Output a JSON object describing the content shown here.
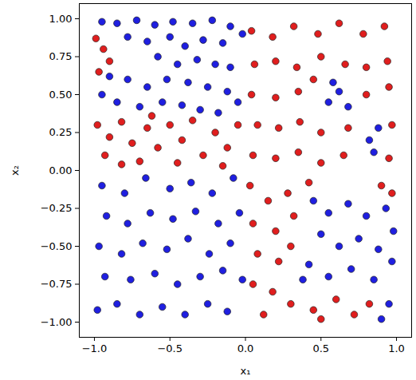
{
  "chart_data": {
    "type": "scatter",
    "xlabel": "x₁",
    "ylabel": "x₂",
    "xlim": [
      -1.1,
      1.1
    ],
    "ylim": [
      -1.1,
      1.1
    ],
    "xticks": [
      {
        "value": -1,
        "label": "−1.0"
      },
      {
        "value": -0.5,
        "label": "−0.5"
      },
      {
        "value": 0,
        "label": "0.0"
      },
      {
        "value": 0.5,
        "label": "0.5"
      },
      {
        "value": 1,
        "label": "1.0"
      }
    ],
    "yticks": [
      {
        "value": -1,
        "label": "−1.00"
      },
      {
        "value": -0.75,
        "label": "−0.75"
      },
      {
        "value": -0.5,
        "label": "−0.50"
      },
      {
        "value": -0.25,
        "label": "−0.25"
      },
      {
        "value": 0,
        "label": "0.00"
      },
      {
        "value": 0.25,
        "label": "0.25"
      },
      {
        "value": 0.5,
        "label": "0.50"
      },
      {
        "value": 0.75,
        "label": "0.75"
      },
      {
        "value": 1,
        "label": "1.00"
      }
    ],
    "grid": false,
    "series": [
      {
        "color": "#1f1fe0",
        "marker": "circle",
        "values": [
          [
            -0.95,
            0.98
          ],
          [
            -0.85,
            0.97
          ],
          [
            -0.72,
            0.99
          ],
          [
            -0.6,
            0.96
          ],
          [
            -0.48,
            0.98
          ],
          [
            -0.35,
            0.97
          ],
          [
            -0.22,
            0.99
          ],
          [
            -0.1,
            0.95
          ],
          [
            -0.02,
            0.9
          ],
          [
            -0.78,
            0.88
          ],
          [
            -0.65,
            0.85
          ],
          [
            -0.5,
            0.88
          ],
          [
            -0.4,
            0.82
          ],
          [
            -0.28,
            0.86
          ],
          [
            -0.15,
            0.84
          ],
          [
            -0.58,
            0.75
          ],
          [
            -0.45,
            0.7
          ],
          [
            -0.32,
            0.73
          ],
          [
            -0.2,
            0.7
          ],
          [
            -0.1,
            0.68
          ],
          [
            -0.9,
            0.62
          ],
          [
            -0.78,
            0.6
          ],
          [
            -0.65,
            0.55
          ],
          [
            -0.52,
            0.6
          ],
          [
            -0.38,
            0.58
          ],
          [
            -0.25,
            0.55
          ],
          [
            -0.12,
            0.52
          ],
          [
            -0.95,
            0.5
          ],
          [
            -0.85,
            0.45
          ],
          [
            -0.7,
            0.42
          ],
          [
            -0.55,
            0.45
          ],
          [
            -0.42,
            0.43
          ],
          [
            -0.3,
            0.4
          ],
          [
            -0.18,
            0.38
          ],
          [
            -0.05,
            0.45
          ],
          [
            -0.95,
            -0.1
          ],
          [
            -0.8,
            -0.15
          ],
          [
            -0.66,
            -0.05
          ],
          [
            -0.5,
            -0.12
          ],
          [
            -0.36,
            -0.08
          ],
          [
            -0.22,
            -0.15
          ],
          [
            -0.08,
            -0.05
          ],
          [
            -0.92,
            -0.3
          ],
          [
            -0.78,
            -0.35
          ],
          [
            -0.63,
            -0.28
          ],
          [
            -0.48,
            -0.32
          ],
          [
            -0.33,
            -0.27
          ],
          [
            -0.18,
            -0.35
          ],
          [
            -0.04,
            -0.28
          ],
          [
            -0.97,
            -0.5
          ],
          [
            -0.82,
            -0.55
          ],
          [
            -0.68,
            -0.48
          ],
          [
            -0.52,
            -0.52
          ],
          [
            -0.38,
            -0.45
          ],
          [
            -0.24,
            -0.55
          ],
          [
            -0.1,
            -0.48
          ],
          [
            -0.93,
            -0.7
          ],
          [
            -0.76,
            -0.72
          ],
          [
            -0.6,
            -0.68
          ],
          [
            -0.45,
            -0.75
          ],
          [
            -0.3,
            -0.7
          ],
          [
            -0.15,
            -0.66
          ],
          [
            -0.02,
            -0.72
          ],
          [
            -0.98,
            -0.92
          ],
          [
            -0.85,
            -0.88
          ],
          [
            -0.7,
            -0.95
          ],
          [
            -0.55,
            -0.9
          ],
          [
            -0.4,
            -0.95
          ],
          [
            -0.25,
            -0.88
          ],
          [
            -0.12,
            -0.93
          ],
          [
            0.55,
            0.45
          ],
          [
            0.62,
            0.52
          ],
          [
            0.68,
            0.42
          ],
          [
            0.58,
            0.58
          ],
          [
            0.82,
            0.2
          ],
          [
            0.88,
            0.28
          ],
          [
            0.85,
            0.12
          ],
          [
            0.45,
            -0.2
          ],
          [
            0.55,
            -0.28
          ],
          [
            0.68,
            -0.22
          ],
          [
            0.8,
            -0.3
          ],
          [
            0.93,
            -0.25
          ],
          [
            0.5,
            -0.42
          ],
          [
            0.62,
            -0.5
          ],
          [
            0.75,
            -0.45
          ],
          [
            0.88,
            -0.52
          ],
          [
            0.98,
            -0.4
          ],
          [
            0.42,
            -0.62
          ],
          [
            0.55,
            -0.7
          ],
          [
            0.7,
            -0.65
          ],
          [
            0.85,
            -0.72
          ],
          [
            0.97,
            -0.6
          ],
          [
            0.95,
            -0.88
          ],
          [
            0.9,
            -0.98
          ],
          [
            0.38,
            -0.72
          ]
        ]
      },
      {
        "color": "#e01e1e",
        "marker": "circle",
        "values": [
          [
            -0.99,
            0.87
          ],
          [
            -0.94,
            0.8
          ],
          [
            -0.9,
            0.72
          ],
          [
            -0.97,
            0.65
          ],
          [
            -0.98,
            0.3
          ],
          [
            -0.9,
            0.22
          ],
          [
            -0.82,
            0.32
          ],
          [
            -0.75,
            0.18
          ],
          [
            -0.65,
            0.28
          ],
          [
            -0.58,
            0.15
          ],
          [
            -0.5,
            0.3
          ],
          [
            -0.42,
            0.2
          ],
          [
            -0.35,
            0.33
          ],
          [
            -0.28,
            0.1
          ],
          [
            -0.2,
            0.25
          ],
          [
            -0.12,
            0.15
          ],
          [
            -0.05,
            0.3
          ],
          [
            -0.93,
            0.1
          ],
          [
            -0.7,
            0.06
          ],
          [
            -0.45,
            0.05
          ],
          [
            -0.15,
            0.03
          ],
          [
            -0.62,
            0.36
          ],
          [
            -0.82,
            0.04
          ],
          [
            0.05,
            0.1
          ],
          [
            0.2,
            0.08
          ],
          [
            0.35,
            0.12
          ],
          [
            0.5,
            0.05
          ],
          [
            0.65,
            0.1
          ],
          [
            0.95,
            0.08
          ],
          [
            0.08,
            0.3
          ],
          [
            0.22,
            0.28
          ],
          [
            0.36,
            0.32
          ],
          [
            0.5,
            0.25
          ],
          [
            0.68,
            0.28
          ],
          [
            0.97,
            0.3
          ],
          [
            0.04,
            0.5
          ],
          [
            0.2,
            0.48
          ],
          [
            0.35,
            0.52
          ],
          [
            0.45,
            0.6
          ],
          [
            0.8,
            0.5
          ],
          [
            0.95,
            0.55
          ],
          [
            0.06,
            0.7
          ],
          [
            0.2,
            0.72
          ],
          [
            0.34,
            0.68
          ],
          [
            0.5,
            0.75
          ],
          [
            0.66,
            0.7
          ],
          [
            0.8,
            0.68
          ],
          [
            0.94,
            0.72
          ],
          [
            0.04,
            0.92
          ],
          [
            0.18,
            0.88
          ],
          [
            0.32,
            0.95
          ],
          [
            0.48,
            0.9
          ],
          [
            0.62,
            0.97
          ],
          [
            0.78,
            0.9
          ],
          [
            0.92,
            0.95
          ],
          [
            0.03,
            -0.1
          ],
          [
            0.15,
            -0.2
          ],
          [
            0.28,
            -0.15
          ],
          [
            0.05,
            -0.35
          ],
          [
            0.2,
            -0.4
          ],
          [
            0.32,
            -0.3
          ],
          [
            0.08,
            -0.55
          ],
          [
            0.22,
            -0.6
          ],
          [
            0.3,
            -0.5
          ],
          [
            0.05,
            -0.75
          ],
          [
            0.18,
            -0.8
          ],
          [
            0.12,
            -0.95
          ],
          [
            0.3,
            -0.88
          ],
          [
            0.45,
            -0.92
          ],
          [
            0.6,
            -0.85
          ],
          [
            0.72,
            -0.95
          ],
          [
            0.82,
            -0.88
          ],
          [
            0.5,
            -0.98
          ],
          [
            0.9,
            -0.1
          ],
          [
            0.97,
            -0.15
          ],
          [
            0.42,
            -0.08
          ]
        ]
      }
    ]
  }
}
